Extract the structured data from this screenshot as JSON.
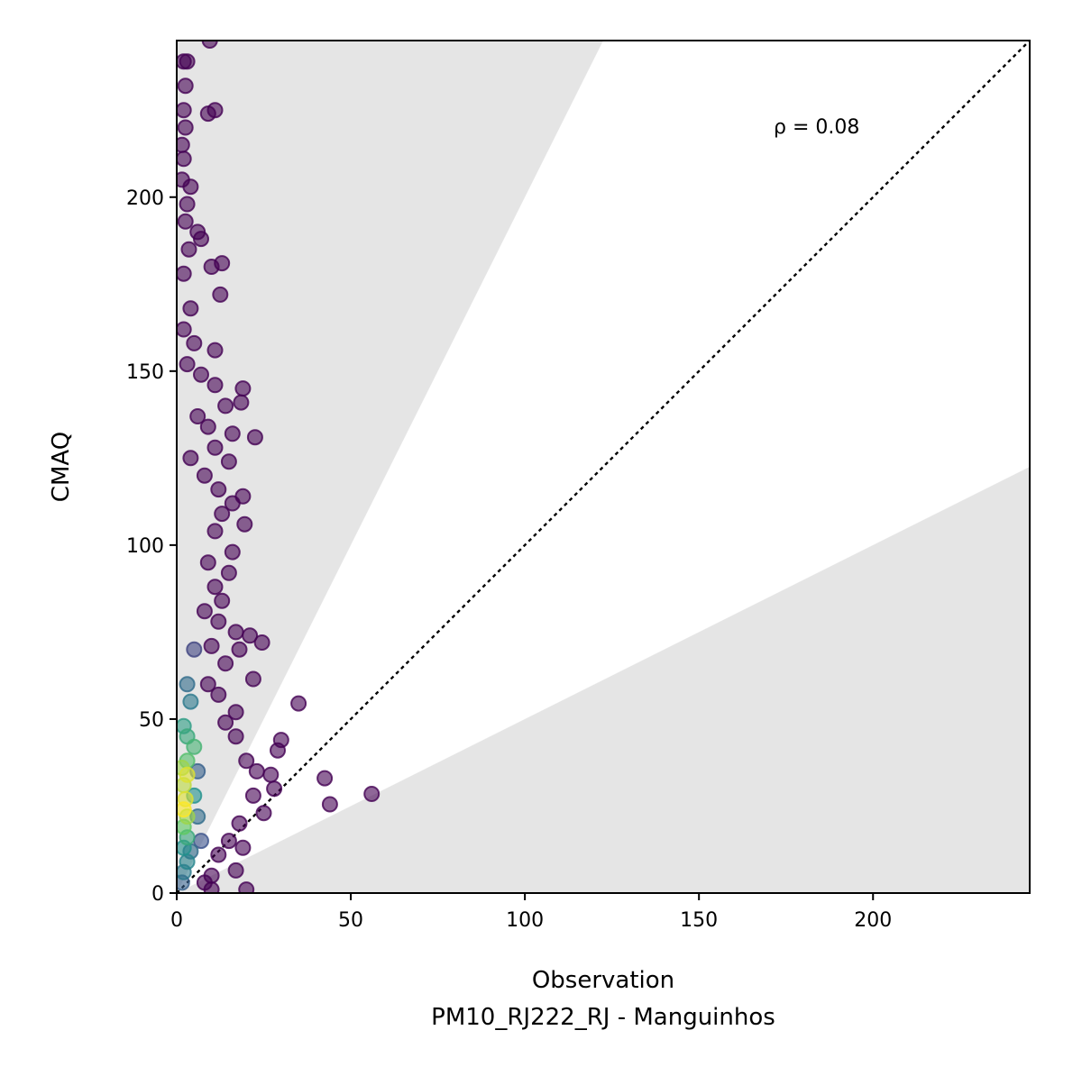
{
  "chart_data": {
    "type": "scatter",
    "title": "",
    "xlabel": "Observation",
    "xlabel_subtitle": "PM10_RJ222_RJ - Manguinhos",
    "ylabel": "CMAQ",
    "xlim": [
      0,
      245
    ],
    "ylim": [
      0,
      245
    ],
    "x_ticks": [
      0,
      50,
      100,
      150,
      200
    ],
    "y_ticks": [
      0,
      50,
      100,
      150,
      200
    ],
    "x_tick_labels": [
      "0",
      "50",
      "100",
      "150",
      "200"
    ],
    "y_tick_labels": [
      "0",
      "50",
      "100",
      "150",
      "200"
    ],
    "annotation": "ρ = 0.08",
    "annotation_position": [
      172,
      220
    ],
    "grid": false,
    "legend": "none",
    "reference_line": {
      "slope": 1,
      "style": "dotted",
      "color": "#000000"
    },
    "shaded_region": {
      "description": "outside factor-of-2 band",
      "lower_slope": 0.5,
      "upper_slope": 2,
      "color": "#e5e5e5"
    },
    "colormap": "viridis (point density)",
    "colors": {
      "low_density": "#440154",
      "mid_density": "#21918c",
      "high_density": "#fde725",
      "shade": "#e5e5e5"
    },
    "points": [
      {
        "x": 9.5,
        "y": 245,
        "d": 0
      },
      {
        "x": 2,
        "y": 239,
        "d": 0
      },
      {
        "x": 3,
        "y": 239,
        "d": 0
      },
      {
        "x": 2.5,
        "y": 232,
        "d": 0
      },
      {
        "x": 2,
        "y": 225,
        "d": 0
      },
      {
        "x": 9,
        "y": 224,
        "d": 0
      },
      {
        "x": 11,
        "y": 225,
        "d": 0
      },
      {
        "x": 2.5,
        "y": 220,
        "d": 0
      },
      {
        "x": 1.5,
        "y": 215,
        "d": 0
      },
      {
        "x": 2,
        "y": 211,
        "d": 0
      },
      {
        "x": 1.5,
        "y": 205,
        "d": 0
      },
      {
        "x": 4,
        "y": 203,
        "d": 0
      },
      {
        "x": 3,
        "y": 198,
        "d": 0
      },
      {
        "x": 2.5,
        "y": 193,
        "d": 0
      },
      {
        "x": 6,
        "y": 190,
        "d": 0
      },
      {
        "x": 7,
        "y": 188,
        "d": 0
      },
      {
        "x": 3.5,
        "y": 185,
        "d": 0
      },
      {
        "x": 10,
        "y": 180,
        "d": 0
      },
      {
        "x": 13,
        "y": 181,
        "d": 0
      },
      {
        "x": 2,
        "y": 178,
        "d": 0
      },
      {
        "x": 12.5,
        "y": 172,
        "d": 0
      },
      {
        "x": 4,
        "y": 168,
        "d": 0
      },
      {
        "x": 2,
        "y": 162,
        "d": 0
      },
      {
        "x": 5,
        "y": 158,
        "d": 0
      },
      {
        "x": 11,
        "y": 156,
        "d": 0
      },
      {
        "x": 3,
        "y": 152,
        "d": 0
      },
      {
        "x": 7,
        "y": 149,
        "d": 0
      },
      {
        "x": 11,
        "y": 146,
        "d": 0
      },
      {
        "x": 19,
        "y": 145,
        "d": 0
      },
      {
        "x": 18.5,
        "y": 141,
        "d": 0
      },
      {
        "x": 14,
        "y": 140,
        "d": 0
      },
      {
        "x": 6,
        "y": 137,
        "d": 0
      },
      {
        "x": 9,
        "y": 134,
        "d": 0
      },
      {
        "x": 16,
        "y": 132,
        "d": 0
      },
      {
        "x": 22.5,
        "y": 131,
        "d": 0
      },
      {
        "x": 11,
        "y": 128,
        "d": 0
      },
      {
        "x": 4,
        "y": 125,
        "d": 0
      },
      {
        "x": 15,
        "y": 124,
        "d": 0
      },
      {
        "x": 8,
        "y": 120,
        "d": 0
      },
      {
        "x": 12,
        "y": 116,
        "d": 0
      },
      {
        "x": 19,
        "y": 114,
        "d": 0
      },
      {
        "x": 16,
        "y": 112,
        "d": 0
      },
      {
        "x": 13,
        "y": 109,
        "d": 0
      },
      {
        "x": 19.5,
        "y": 106,
        "d": 0
      },
      {
        "x": 11,
        "y": 104,
        "d": 0
      },
      {
        "x": 16,
        "y": 98,
        "d": 0
      },
      {
        "x": 9,
        "y": 95,
        "d": 0
      },
      {
        "x": 15,
        "y": 92,
        "d": 0
      },
      {
        "x": 11,
        "y": 88,
        "d": 0
      },
      {
        "x": 13,
        "y": 84,
        "d": 0
      },
      {
        "x": 8,
        "y": 81,
        "d": 0
      },
      {
        "x": 12,
        "y": 78,
        "d": 0
      },
      {
        "x": 17,
        "y": 75,
        "d": 0
      },
      {
        "x": 21,
        "y": 74,
        "d": 0
      },
      {
        "x": 24.5,
        "y": 72,
        "d": 0
      },
      {
        "x": 10,
        "y": 71,
        "d": 0
      },
      {
        "x": 18,
        "y": 70,
        "d": 0
      },
      {
        "x": 14,
        "y": 66,
        "d": 0
      },
      {
        "x": 22,
        "y": 61.5,
        "d": 0
      },
      {
        "x": 9,
        "y": 60,
        "d": 0
      },
      {
        "x": 12,
        "y": 57,
        "d": 0
      },
      {
        "x": 35,
        "y": 54.5,
        "d": 0
      },
      {
        "x": 17,
        "y": 52,
        "d": 0
      },
      {
        "x": 14,
        "y": 49,
        "d": 0
      },
      {
        "x": 30,
        "y": 44,
        "d": 0
      },
      {
        "x": 17,
        "y": 45,
        "d": 0
      },
      {
        "x": 29,
        "y": 41,
        "d": 0
      },
      {
        "x": 20,
        "y": 38,
        "d": 0
      },
      {
        "x": 23,
        "y": 35,
        "d": 0
      },
      {
        "x": 27,
        "y": 34,
        "d": 0
      },
      {
        "x": 42.5,
        "y": 33,
        "d": 0
      },
      {
        "x": 28,
        "y": 30,
        "d": 0
      },
      {
        "x": 56,
        "y": 28.5,
        "d": 0
      },
      {
        "x": 22,
        "y": 28,
        "d": 0
      },
      {
        "x": 44,
        "y": 25.5,
        "d": 0
      },
      {
        "x": 25,
        "y": 23,
        "d": 0
      },
      {
        "x": 18,
        "y": 20,
        "d": 0
      },
      {
        "x": 15,
        "y": 15,
        "d": 0
      },
      {
        "x": 19,
        "y": 13,
        "d": 0
      },
      {
        "x": 12,
        "y": 11,
        "d": 0
      },
      {
        "x": 17,
        "y": 6.5,
        "d": 0
      },
      {
        "x": 10,
        "y": 5,
        "d": 0
      },
      {
        "x": 8,
        "y": 3,
        "d": 0
      },
      {
        "x": 20,
        "y": 1,
        "d": 0
      },
      {
        "x": 10,
        "y": 1,
        "d": 0
      },
      {
        "x": 3,
        "y": 60,
        "d": 0.35
      },
      {
        "x": 4,
        "y": 55,
        "d": 0.4
      },
      {
        "x": 2,
        "y": 48,
        "d": 0.55
      },
      {
        "x": 3,
        "y": 45,
        "d": 0.6
      },
      {
        "x": 5,
        "y": 42,
        "d": 0.65
      },
      {
        "x": 3,
        "y": 38,
        "d": 0.7
      },
      {
        "x": 1.5,
        "y": 36,
        "d": 0.85
      },
      {
        "x": 3,
        "y": 34,
        "d": 0.95
      },
      {
        "x": 2,
        "y": 31,
        "d": 0.9
      },
      {
        "x": 2.5,
        "y": 27,
        "d": 0.95
      },
      {
        "x": 2,
        "y": 24,
        "d": 1.0
      },
      {
        "x": 3,
        "y": 22,
        "d": 0.85
      },
      {
        "x": 2,
        "y": 19,
        "d": 0.75
      },
      {
        "x": 3,
        "y": 16,
        "d": 0.6
      },
      {
        "x": 2,
        "y": 13,
        "d": 0.5
      },
      {
        "x": 3,
        "y": 9,
        "d": 0.45
      },
      {
        "x": 2,
        "y": 6,
        "d": 0.4
      },
      {
        "x": 5,
        "y": 28,
        "d": 0.5
      },
      {
        "x": 6,
        "y": 22,
        "d": 0.35
      },
      {
        "x": 4,
        "y": 12,
        "d": 0.35
      },
      {
        "x": 6,
        "y": 35,
        "d": 0.3
      },
      {
        "x": 1.5,
        "y": 3,
        "d": 0.3
      },
      {
        "x": 7,
        "y": 15,
        "d": 0.25
      },
      {
        "x": 5,
        "y": 70,
        "d": 0.2
      }
    ]
  }
}
